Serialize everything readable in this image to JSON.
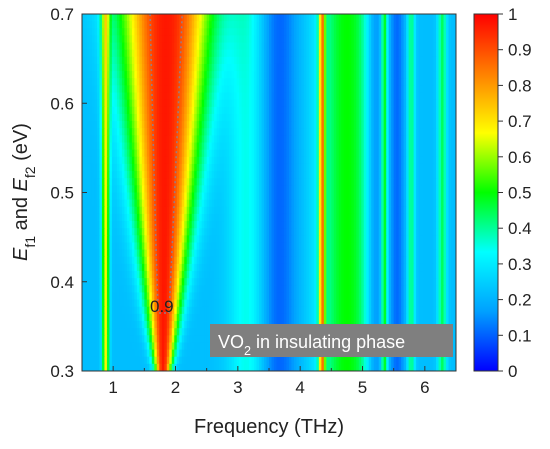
{
  "chart_data": {
    "type": "heatmap",
    "x_axis": {
      "label": "Frequency (THz)",
      "range": [
        0.5,
        6.5
      ],
      "ticks": [
        1,
        2,
        3,
        4,
        5,
        6
      ],
      "tick_labels": [
        "1",
        "2",
        "3",
        "4",
        "5",
        "6"
      ]
    },
    "y_axis": {
      "label_parts": [
        {
          "text": "E",
          "style": "italic"
        },
        {
          "text": "f1",
          "style": "sub"
        },
        {
          "text": " and ",
          "style": "normal"
        },
        {
          "text": "E",
          "style": "italic"
        },
        {
          "text": "f2",
          "style": "sub"
        },
        {
          "text": " (eV)",
          "style": "normal"
        }
      ],
      "range": [
        0.3,
        0.7
      ],
      "ticks": [
        0.3,
        0.4,
        0.5,
        0.6,
        0.7
      ],
      "tick_labels": [
        "0.3",
        "0.4",
        "0.5",
        "0.6",
        "0.7"
      ]
    },
    "colorbar": {
      "range": [
        0,
        1
      ],
      "ticks": [
        0,
        0.1,
        0.2,
        0.3,
        0.4,
        0.5,
        0.6,
        0.7,
        0.8,
        0.9,
        1
      ],
      "tick_labels": [
        "0",
        "0.1",
        "0.2",
        "0.3",
        "0.4",
        "0.5",
        "0.6",
        "0.7",
        "0.8",
        "0.9",
        "1"
      ],
      "colormap": [
        "#0000ff",
        "#00a0ff",
        "#00ffff",
        "#00ff00",
        "#ffff00",
        "#ff8000",
        "#ff0000"
      ]
    },
    "contour": {
      "level": 0.9,
      "label": "0.9",
      "style": "dotted"
    },
    "annotation": {
      "parts": [
        {
          "text": "VO",
          "style": "normal"
        },
        {
          "text": "2",
          "style": "sub"
        },
        {
          "text": " in insulating phase",
          "style": "normal"
        }
      ],
      "box_color": "#7f7f7f",
      "text_color": "#ffffff"
    },
    "grid": false
  }
}
